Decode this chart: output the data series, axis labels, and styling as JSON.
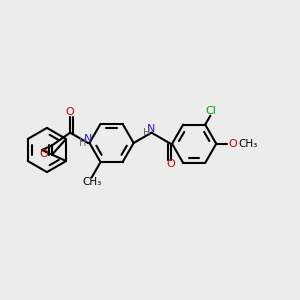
{
  "bg_color": "#ececec",
  "bond_color": "#000000",
  "bond_width": 1.5,
  "figsize": [
    3.0,
    3.0
  ],
  "dpi": 100,
  "xlim": [
    0,
    10
  ],
  "ylim": [
    2,
    8
  ]
}
